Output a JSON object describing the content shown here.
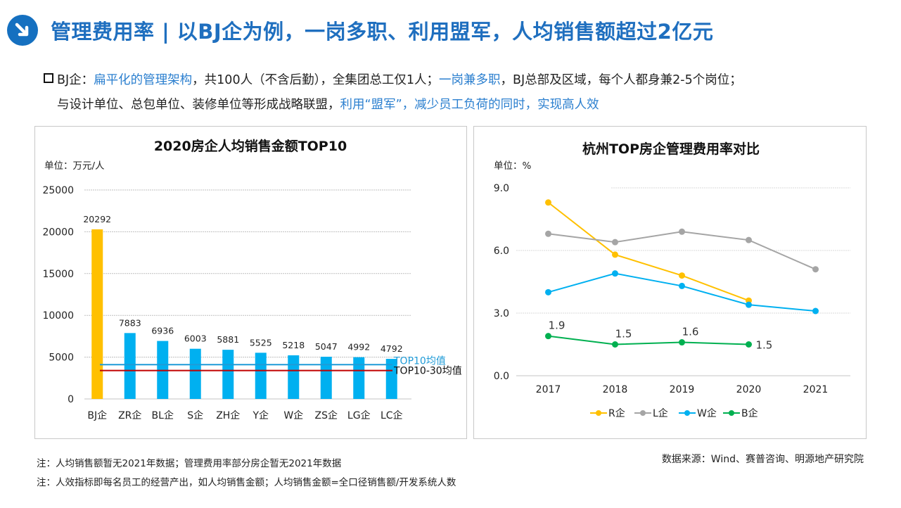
{
  "header": {
    "icon": "arrow-down-right-icon",
    "title": "管理费用率 | 以BJ企为例，一岗多职、利用盟军，人均销售额超过2亿元"
  },
  "bullets": {
    "line1": [
      {
        "text": "BJ企：",
        "blue": false
      },
      {
        "text": "扁平化的管理架构",
        "blue": true
      },
      {
        "text": "，共100人（不含后勤），全集团总工仅1人；",
        "blue": false
      },
      {
        "text": "一岗兼多职",
        "blue": true
      },
      {
        "text": "，BJ总部及区域，每个人都身兼2-5个岗位；",
        "blue": false
      }
    ],
    "line2": [
      {
        "text": "与设计单位、总包单位、装修单位等形成战略联盟，",
        "blue": false
      },
      {
        "text": "利用“盟军”，减少员工负荷的同时，实现高人效",
        "blue": true
      }
    ]
  },
  "chart_data": [
    {
      "type": "bar",
      "title": "2020房企人均销售金额TOP10",
      "unit_label": "单位：万元/人",
      "categories": [
        "BJ企",
        "ZR企",
        "BL企",
        "S企",
        "ZH企",
        "Y企",
        "W企",
        "ZS企",
        "LG企",
        "LC企"
      ],
      "values": [
        20292,
        7883,
        6936,
        6003,
        5881,
        5525,
        5218,
        5047,
        4992,
        4792
      ],
      "bar_colors": [
        "#ffc000",
        "#00b0f0",
        "#00b0f0",
        "#00b0f0",
        "#00b0f0",
        "#00b0f0",
        "#00b0f0",
        "#00b0f0",
        "#00b0f0",
        "#00b0f0"
      ],
      "y_ticks": [
        0,
        5000,
        10000,
        15000,
        20000,
        25000
      ],
      "ylim": [
        0,
        25000
      ],
      "grid": true,
      "reference_lines": [
        {
          "name": "TOP10均值",
          "value": 4100,
          "color": "#1f9bd7",
          "label_color": "#1f9bd7"
        },
        {
          "name": "TOP10-30均值",
          "value": 3400,
          "color": "#c00000",
          "label_color": "#111111"
        }
      ],
      "xlabel": "",
      "ylabel": ""
    },
    {
      "type": "line",
      "title": "杭州TOP房企管理费用率对比",
      "unit_label": "单位：%",
      "x": [
        "2017",
        "2018",
        "2019",
        "2020",
        "2021"
      ],
      "y_ticks": [
        "0.0",
        "3.0",
        "6.0",
        "9.0"
      ],
      "ylim": [
        0,
        9
      ],
      "grid": true,
      "legend_position": "bottom",
      "series": [
        {
          "name": "R企",
          "color": "#ffc000",
          "values": [
            8.3,
            5.8,
            4.8,
            3.6,
            null
          ],
          "labels": false
        },
        {
          "name": "L企",
          "color": "#a5a5a5",
          "values": [
            6.8,
            6.4,
            6.9,
            6.5,
            5.1
          ],
          "labels": false
        },
        {
          "name": "W企",
          "color": "#00b0f0",
          "values": [
            4.0,
            4.9,
            4.3,
            3.4,
            3.1
          ],
          "labels": false
        },
        {
          "name": "B企",
          "color": "#00b050",
          "values": [
            1.9,
            1.5,
            1.6,
            1.5,
            null
          ],
          "labels": true
        }
      ]
    }
  ],
  "footer": {
    "notes": [
      "注：人均销售额暂无2021年数据；管理费用率部分房企暂无2021年数据",
      "注：人效指标即每名员工的经营产出，如人均销售金额；人均销售金额=全口径销售额/开发系统人数"
    ],
    "source": "数据来源：Wind、赛普咨询、明源地产研究院"
  }
}
